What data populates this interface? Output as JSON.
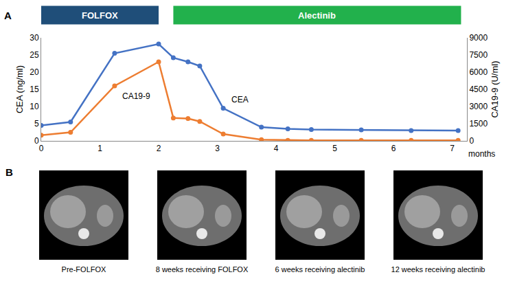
{
  "chart_data": {
    "type": "line",
    "panel_label": "A",
    "x": [
      0,
      0.5,
      1.25,
      2.0,
      2.25,
      2.5,
      2.7,
      3.1,
      3.75,
      4.2,
      4.6,
      5.45,
      6.3,
      7.1
    ],
    "xlim": [
      0,
      7.25
    ],
    "xticks": [
      0,
      1,
      2,
      3,
      4,
      5,
      6,
      7
    ],
    "xlabel": "months",
    "ylabel": "CEA (ng/ml)",
    "ylim": [
      0,
      30
    ],
    "yticks": [
      0,
      5,
      10,
      15,
      20,
      25,
      30
    ],
    "y2label": "CA19-9 (U/ml)",
    "y2lim": [
      0,
      9000
    ],
    "y2ticks": [
      0,
      1500,
      3000,
      4500,
      6000,
      7500,
      9000
    ],
    "grid": false,
    "marker": "circle",
    "line_style": "solid",
    "series": [
      {
        "name": "CEA",
        "color": "#4472c4",
        "values": [
          4.5,
          5.5,
          25.5,
          28.2,
          24.2,
          23.0,
          21.8,
          9.5,
          4.0,
          3.5,
          3.3,
          3.2,
          3.0,
          3.0
        ]
      },
      {
        "name": "CA19-9",
        "color": "#ed7d31",
        "axis": "y2",
        "values": [
          500,
          750,
          4800,
          6900,
          2000,
          1950,
          1700,
          600,
          100,
          50,
          50,
          50,
          40,
          40
        ]
      }
    ],
    "treatments": [
      {
        "label": "FOLFOX",
        "start": 0,
        "end": 2.0,
        "color": "#1f4e79"
      },
      {
        "label": "Alectinib",
        "start": 2.25,
        "end": 7.15,
        "color": "#22b14c"
      }
    ]
  },
  "panel_b": {
    "panel_label": "B",
    "images": [
      {
        "caption": "Pre-FOLFOX"
      },
      {
        "caption": "8 weeks receiving FOLFOX"
      },
      {
        "caption": "6 weeks receiving alectinib"
      },
      {
        "caption": "12 weeks receiving alectinib"
      }
    ]
  }
}
